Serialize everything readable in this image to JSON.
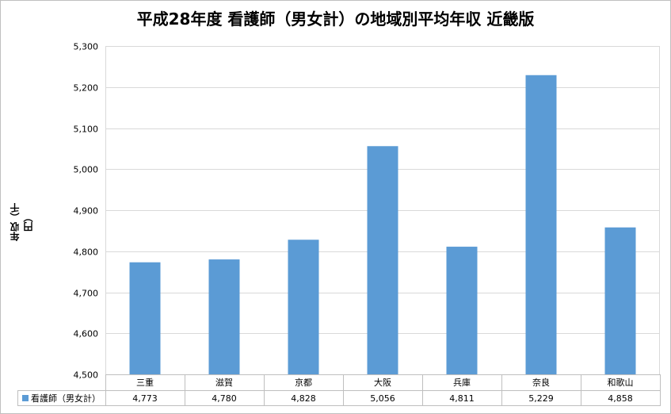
{
  "chart_data": {
    "type": "bar",
    "title": "平成28年度 看護師（男女計）の地域別平均年収 近畿版",
    "ylabel": "年収（千円）",
    "xlabel": "",
    "categories": [
      "三重",
      "滋賀",
      "京都",
      "大阪",
      "兵庫",
      "奈良",
      "和歌山"
    ],
    "series": [
      {
        "name": "看護師（男女計）",
        "values": [
          4773,
          4780,
          4828,
          5056,
          4811,
          5229,
          4858
        ],
        "value_labels": [
          "4,773",
          "4,780",
          "4,828",
          "5,056",
          "4,811",
          "5,229",
          "4,858"
        ],
        "color": "#5b9bd5"
      }
    ],
    "ylim": [
      4500,
      5300
    ],
    "yticks": [
      4500,
      4600,
      4700,
      4800,
      4900,
      5000,
      5100,
      5200,
      5300
    ],
    "ytick_labels": [
      "4,500",
      "4,600",
      "4,700",
      "4,800",
      "4,900",
      "5,000",
      "5,100",
      "5,200",
      "5,300"
    ],
    "grid": true,
    "legend": "data-table"
  }
}
